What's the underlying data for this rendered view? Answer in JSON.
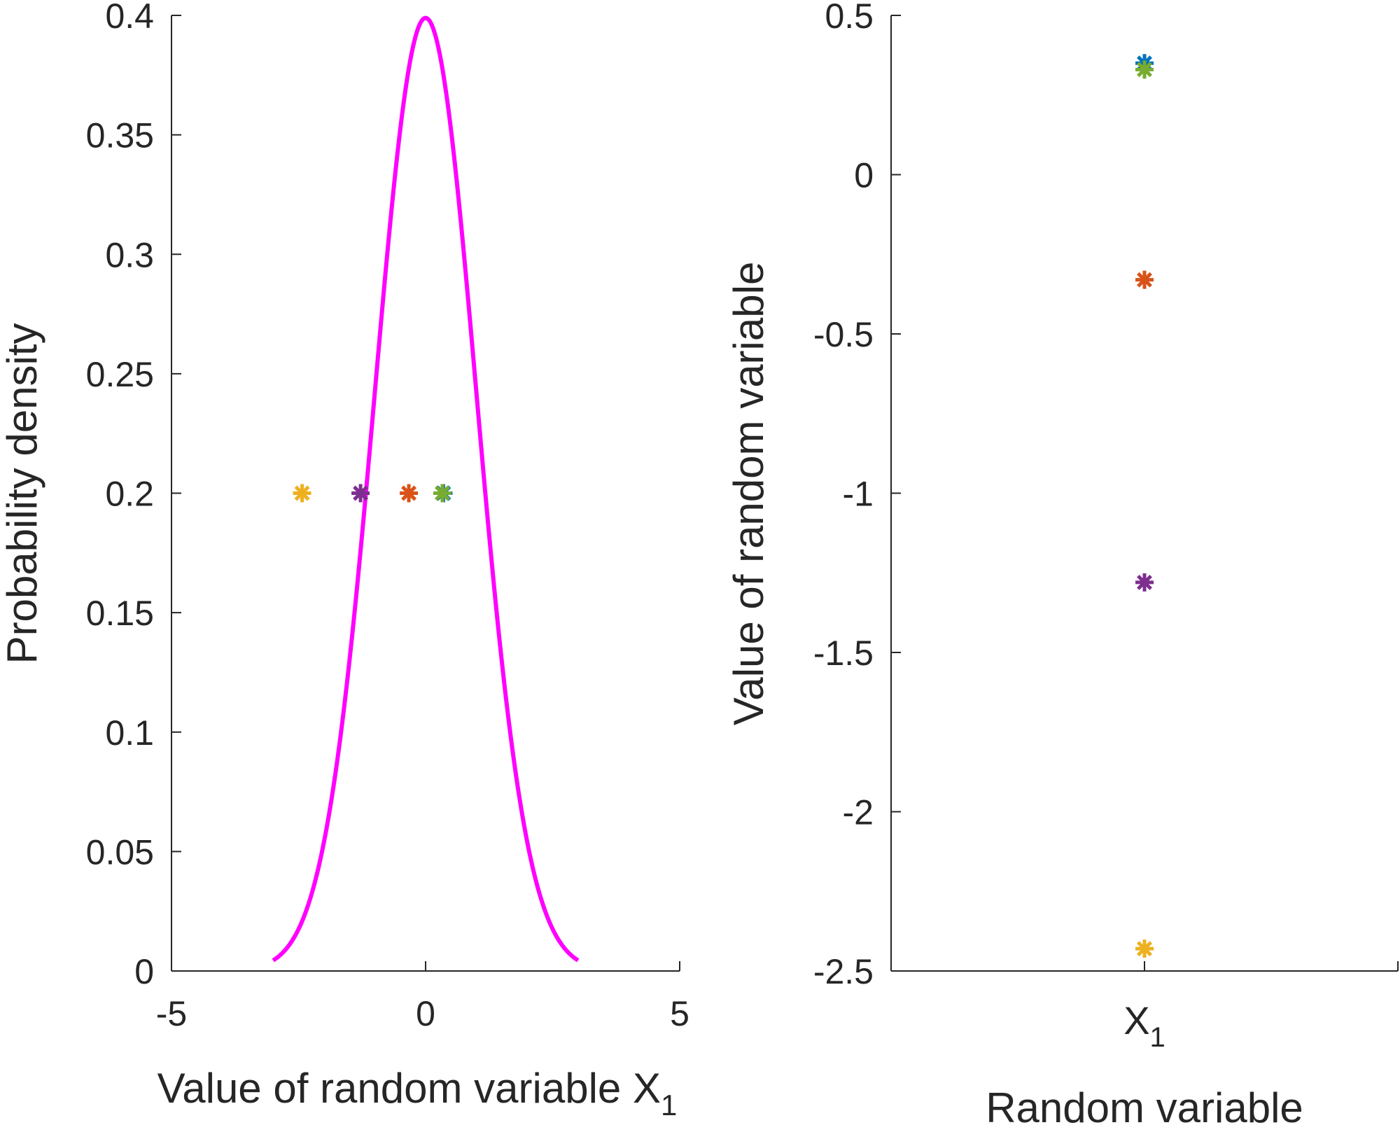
{
  "chart_data": [
    {
      "type": "line",
      "xlabel": "Value of random variable X",
      "xlabel_subscript": "1",
      "ylabel": "Probability density",
      "xlim": [
        -5,
        5
      ],
      "ylim": [
        0,
        0.4
      ],
      "x_ticks": [
        "-5",
        "0",
        "5"
      ],
      "y_ticks": [
        "0",
        "0.05",
        "0.1",
        "0.15",
        "0.2",
        "0.25",
        "0.3",
        "0.35",
        "0.4"
      ],
      "grid": false,
      "series": [
        {
          "kind": "line",
          "distribution": "standard normal pdf",
          "mean": 0,
          "std": 1,
          "x_range": [
            -3,
            3
          ],
          "color": "#FF00FF"
        },
        {
          "kind": "scatter",
          "marker": "asterisk",
          "points": [
            {
              "x": 0.35,
              "y": 0.2,
              "color": "#0072BD"
            },
            {
              "x": -0.33,
              "y": 0.2,
              "color": "#D95319"
            },
            {
              "x": -2.43,
              "y": 0.2,
              "color": "#EDB120"
            },
            {
              "x": -1.28,
              "y": 0.2,
              "color": "#7E2F8E"
            },
            {
              "x": 0.33,
              "y": 0.2,
              "color": "#77AC30"
            }
          ]
        }
      ]
    },
    {
      "type": "scatter",
      "xlabel": "Random variable",
      "ylabel": "Value of random variable",
      "categories": [
        "X"
      ],
      "category_subscript": "1",
      "ylim": [
        -2.5,
        0.5
      ],
      "y_ticks": [
        "-2.5",
        "-2",
        "-1.5",
        "-1",
        "-0.5",
        "0",
        "0.5"
      ],
      "grid": false,
      "series": [
        {
          "kind": "scatter",
          "marker": "asterisk",
          "points": [
            {
              "category": 1,
              "y": 0.35,
              "color": "#0072BD"
            },
            {
              "category": 1,
              "y": -0.33,
              "color": "#D95319"
            },
            {
              "category": 1,
              "y": -2.43,
              "color": "#EDB120"
            },
            {
              "category": 1,
              "y": -1.28,
              "color": "#7E2F8E"
            },
            {
              "category": 1,
              "y": 0.33,
              "color": "#77AC30"
            }
          ]
        }
      ]
    }
  ]
}
